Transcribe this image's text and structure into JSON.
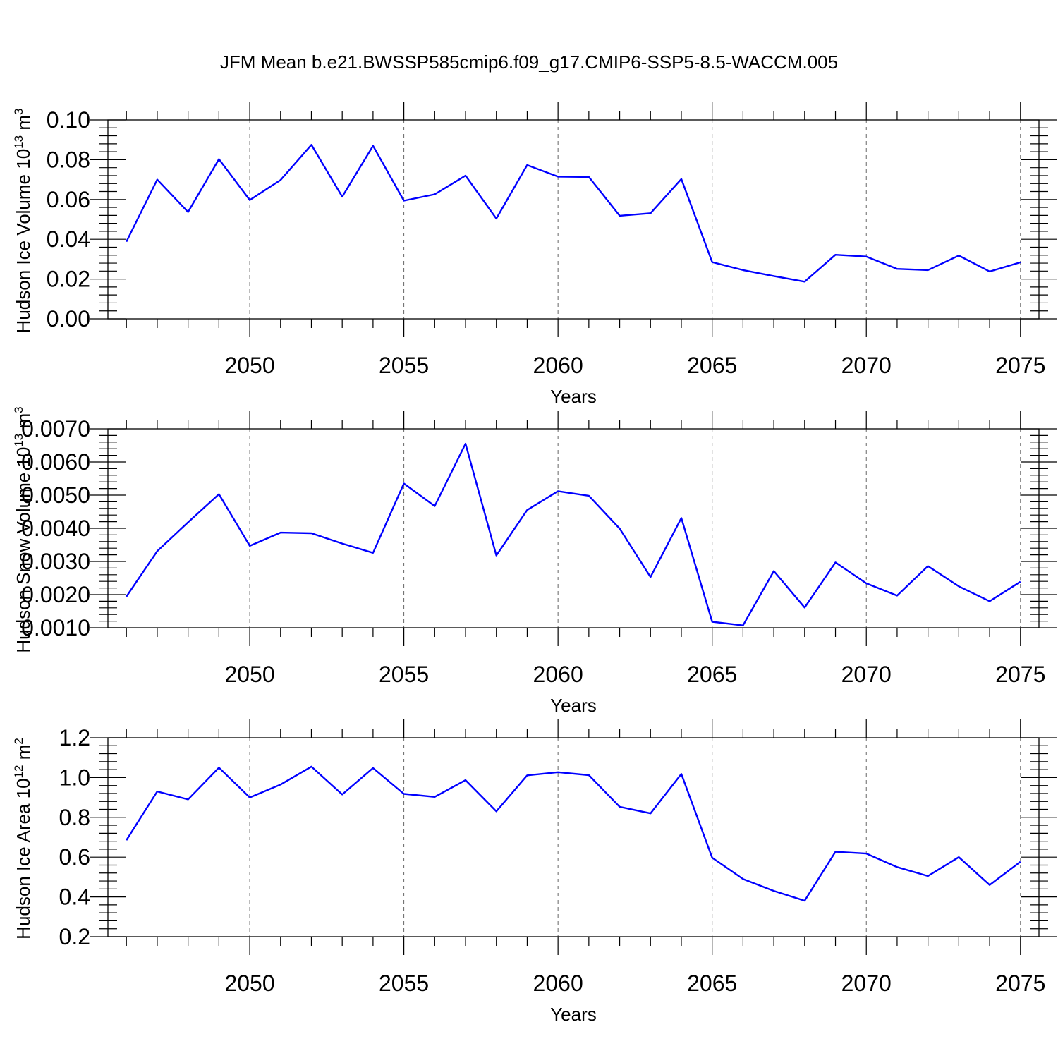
{
  "title": "JFM Mean b.e21.BWSSP585cmip6.f09_g17.CMIP6-SSP5-8.5-WACCM.005",
  "line_color": "#0000ff",
  "chart_data": [
    {
      "type": "line",
      "title": "",
      "xlabel": "Years",
      "ylabel": "Hudson Ice Volume 10",
      "ylabel_exp": "13",
      "ylabel_unit": " m",
      "ylabel_unit_exp": "3",
      "xlim": [
        2046,
        2075
      ],
      "ylim": [
        0.0,
        0.1
      ],
      "x_ticks": [
        2050,
        2055,
        2060,
        2065,
        2070,
        2075
      ],
      "y_ticks": [
        0.0,
        0.02,
        0.04,
        0.06,
        0.08,
        0.1
      ],
      "y_tick_labels": [
        "0.00",
        "0.02",
        "0.04",
        "0.06",
        "0.08",
        "0.10"
      ],
      "grid": "vertical dashed at major x ticks",
      "x": [
        2046,
        2047,
        2048,
        2049,
        2050,
        2051,
        2052,
        2053,
        2054,
        2055,
        2056,
        2057,
        2058,
        2059,
        2060,
        2061,
        2062,
        2063,
        2064,
        2065,
        2066,
        2067,
        2068,
        2069,
        2070,
        2071,
        2072,
        2073,
        2074,
        2075
      ],
      "y": [
        0.0388,
        0.07,
        0.0537,
        0.0803,
        0.0597,
        0.0698,
        0.0875,
        0.0614,
        0.087,
        0.0594,
        0.0626,
        0.072,
        0.0504,
        0.0773,
        0.0715,
        0.0713,
        0.0518,
        0.0531,
        0.0703,
        0.0285,
        0.0245,
        0.0215,
        0.0187,
        0.0322,
        0.0313,
        0.0251,
        0.0245,
        0.0318,
        0.0238,
        0.0284
      ]
    },
    {
      "type": "line",
      "title": "",
      "xlabel": "Years",
      "ylabel": "Hudson Snow Volume 10",
      "ylabel_exp": "13",
      "ylabel_unit": " m",
      "ylabel_unit_exp": "3",
      "xlim": [
        2046,
        2075
      ],
      "ylim": [
        0.001,
        0.007
      ],
      "x_ticks": [
        2050,
        2055,
        2060,
        2065,
        2070,
        2075
      ],
      "y_ticks": [
        0.001,
        0.002,
        0.003,
        0.004,
        0.005,
        0.006,
        0.007
      ],
      "y_tick_labels": [
        "0.0010",
        "0.0020",
        "0.0030",
        "0.0040",
        "0.0050",
        "0.0060",
        "0.0070"
      ],
      "grid": "vertical dashed at major x ticks",
      "x": [
        2046,
        2047,
        2048,
        2049,
        2050,
        2051,
        2052,
        2053,
        2054,
        2055,
        2056,
        2057,
        2058,
        2059,
        2060,
        2061,
        2062,
        2063,
        2064,
        2065,
        2066,
        2067,
        2068,
        2069,
        2070,
        2071,
        2072,
        2073,
        2074,
        2075
      ],
      "y": [
        0.00194,
        0.00331,
        0.00418,
        0.00503,
        0.00347,
        0.00387,
        0.00385,
        0.00354,
        0.00326,
        0.00535,
        0.00467,
        0.00655,
        0.00318,
        0.00455,
        0.00512,
        0.00498,
        0.00399,
        0.00253,
        0.00431,
        0.00118,
        0.00107,
        0.00271,
        0.00161,
        0.00297,
        0.00234,
        0.00197,
        0.00286,
        0.00225,
        0.0018,
        0.00239
      ]
    },
    {
      "type": "line",
      "title": "",
      "xlabel": "Years",
      "ylabel": "Hudson Ice Area 10",
      "ylabel_exp": "12",
      "ylabel_unit": " m",
      "ylabel_unit_exp": "2",
      "xlim": [
        2046,
        2075
      ],
      "ylim": [
        0.2,
        1.2
      ],
      "x_ticks": [
        2050,
        2055,
        2060,
        2065,
        2070,
        2075
      ],
      "y_ticks": [
        0.2,
        0.4,
        0.6,
        0.8,
        1.0,
        1.2
      ],
      "y_tick_labels": [
        "0.2",
        "0.4",
        "0.6",
        "0.8",
        "1.0",
        "1.2"
      ],
      "grid": "vertical dashed at major x ticks",
      "x": [
        2046,
        2047,
        2048,
        2049,
        2050,
        2051,
        2052,
        2053,
        2054,
        2055,
        2056,
        2057,
        2058,
        2059,
        2060,
        2061,
        2062,
        2063,
        2064,
        2065,
        2066,
        2067,
        2068,
        2069,
        2070,
        2071,
        2072,
        2073,
        2074,
        2075
      ],
      "y": [
        0.685,
        0.93,
        0.89,
        1.05,
        0.9,
        0.965,
        1.055,
        0.915,
        1.048,
        0.918,
        0.903,
        0.987,
        0.83,
        1.011,
        1.027,
        1.012,
        0.853,
        0.82,
        1.018,
        0.597,
        0.49,
        0.43,
        0.381,
        0.627,
        0.618,
        0.55,
        0.505,
        0.6,
        0.46,
        0.577
      ]
    }
  ]
}
